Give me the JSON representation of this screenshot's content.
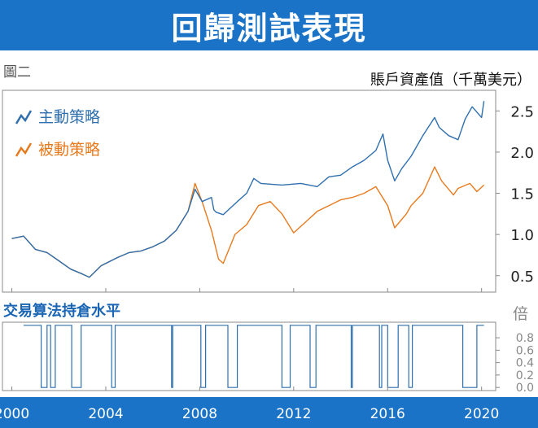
{
  "header": {
    "title": "回歸測試表現"
  },
  "figure_label": "圖二",
  "chart_data": [
    {
      "type": "line",
      "ylabel": "賬戶資產值（千萬美元）",
      "ylim": [
        0.3,
        2.75
      ],
      "yticks": [
        0.5,
        1.0,
        1.5,
        2.0,
        2.5
      ],
      "xlim": [
        1999.6,
        2020.6
      ],
      "xticks": [
        2000,
        2004,
        2008,
        2012,
        2016,
        2020
      ],
      "legend": "top-left",
      "series": [
        {
          "name": "主動策略",
          "color": "#2f6fae",
          "points": [
            [
              2000.0,
              0.95
            ],
            [
              2000.5,
              0.98
            ],
            [
              2001.0,
              0.82
            ],
            [
              2001.5,
              0.78
            ],
            [
              2002.0,
              0.68
            ],
            [
              2002.5,
              0.58
            ],
            [
              2003.0,
              0.52
            ],
            [
              2003.3,
              0.48
            ],
            [
              2003.8,
              0.62
            ],
            [
              2004.5,
              0.72
            ],
            [
              2005.0,
              0.78
            ],
            [
              2005.5,
              0.8
            ],
            [
              2006.0,
              0.85
            ],
            [
              2006.5,
              0.92
            ],
            [
              2007.0,
              1.05
            ],
            [
              2007.5,
              1.28
            ],
            [
              2007.8,
              1.55
            ],
            [
              2008.1,
              1.4
            ],
            [
              2008.5,
              1.45
            ],
            [
              2008.6,
              1.3
            ],
            [
              2008.7,
              1.27
            ],
            [
              2009.0,
              1.24
            ],
            [
              2009.6,
              1.4
            ],
            [
              2010.0,
              1.5
            ],
            [
              2010.3,
              1.68
            ],
            [
              2010.6,
              1.62
            ],
            [
              2011.5,
              1.6
            ],
            [
              2012.3,
              1.62
            ],
            [
              2013.0,
              1.58
            ],
            [
              2013.5,
              1.7
            ],
            [
              2014.0,
              1.72
            ],
            [
              2014.5,
              1.82
            ],
            [
              2015.0,
              1.9
            ],
            [
              2015.5,
              2.02
            ],
            [
              2015.8,
              2.22
            ],
            [
              2016.0,
              1.9
            ],
            [
              2016.3,
              1.65
            ],
            [
              2016.6,
              1.8
            ],
            [
              2017.0,
              1.95
            ],
            [
              2017.5,
              2.2
            ],
            [
              2018.0,
              2.42
            ],
            [
              2018.2,
              2.3
            ],
            [
              2018.6,
              2.2
            ],
            [
              2019.0,
              2.15
            ],
            [
              2019.3,
              2.4
            ],
            [
              2019.6,
              2.55
            ],
            [
              2020.0,
              2.42
            ],
            [
              2020.1,
              2.62
            ]
          ]
        },
        {
          "name": "被動策略",
          "color": "#e87a1e",
          "points": [
            [
              2000.0,
              0.95
            ],
            [
              2000.5,
              0.98
            ],
            [
              2001.0,
              0.82
            ],
            [
              2001.5,
              0.78
            ],
            [
              2002.0,
              0.68
            ],
            [
              2002.5,
              0.58
            ],
            [
              2003.0,
              0.52
            ],
            [
              2003.3,
              0.48
            ],
            [
              2003.8,
              0.62
            ],
            [
              2004.5,
              0.72
            ],
            [
              2005.0,
              0.78
            ],
            [
              2005.5,
              0.8
            ],
            [
              2006.0,
              0.85
            ],
            [
              2006.5,
              0.92
            ],
            [
              2007.0,
              1.05
            ],
            [
              2007.5,
              1.28
            ],
            [
              2007.8,
              1.62
            ],
            [
              2008.1,
              1.4
            ],
            [
              2008.5,
              1.05
            ],
            [
              2008.8,
              0.7
            ],
            [
              2009.0,
              0.65
            ],
            [
              2009.5,
              1.0
            ],
            [
              2010.0,
              1.12
            ],
            [
              2010.5,
              1.35
            ],
            [
              2011.0,
              1.4
            ],
            [
              2011.5,
              1.25
            ],
            [
              2012.0,
              1.02
            ],
            [
              2012.5,
              1.15
            ],
            [
              2013.0,
              1.28
            ],
            [
              2013.5,
              1.35
            ],
            [
              2014.0,
              1.42
            ],
            [
              2014.5,
              1.45
            ],
            [
              2015.0,
              1.5
            ],
            [
              2015.5,
              1.58
            ],
            [
              2016.0,
              1.35
            ],
            [
              2016.3,
              1.08
            ],
            [
              2016.8,
              1.25
            ],
            [
              2017.0,
              1.35
            ],
            [
              2017.5,
              1.5
            ],
            [
              2018.0,
              1.82
            ],
            [
              2018.3,
              1.65
            ],
            [
              2018.8,
              1.48
            ],
            [
              2019.0,
              1.56
            ],
            [
              2019.5,
              1.62
            ],
            [
              2019.8,
              1.52
            ],
            [
              2020.1,
              1.6
            ]
          ]
        }
      ]
    },
    {
      "type": "line",
      "title": "交易算法持倉水平",
      "ylabel": "倍",
      "ylim": [
        -0.05,
        1.05
      ],
      "yticks": [
        0.0,
        0.2,
        0.4,
        0.6,
        0.8
      ],
      "ytick_labels": [
        "0.0",
        "0.2",
        "0.4",
        "0.6",
        "0.8"
      ],
      "color": "#2f6fae",
      "zero_intervals": [
        [
          2001.25,
          2001.5
        ],
        [
          2001.65,
          2001.85
        ],
        [
          2002.55,
          2002.95
        ],
        [
          2004.25,
          2004.4
        ],
        [
          2006.8,
          2006.85
        ],
        [
          2008.05,
          2008.25
        ],
        [
          2009.2,
          2009.6
        ],
        [
          2011.5,
          2011.85
        ],
        [
          2012.7,
          2012.95
        ],
        [
          2014.45,
          2014.5
        ],
        [
          2015.65,
          2015.75
        ],
        [
          2016.0,
          2016.45
        ],
        [
          2016.9,
          2017.05
        ],
        [
          2019.2,
          2019.8
        ]
      ],
      "x_range": [
        2000.5,
        2020.1
      ]
    }
  ],
  "xaxis": {
    "tick_labels": [
      "2000",
      "2004",
      "2008",
      "2012",
      "2016",
      "2020"
    ]
  }
}
